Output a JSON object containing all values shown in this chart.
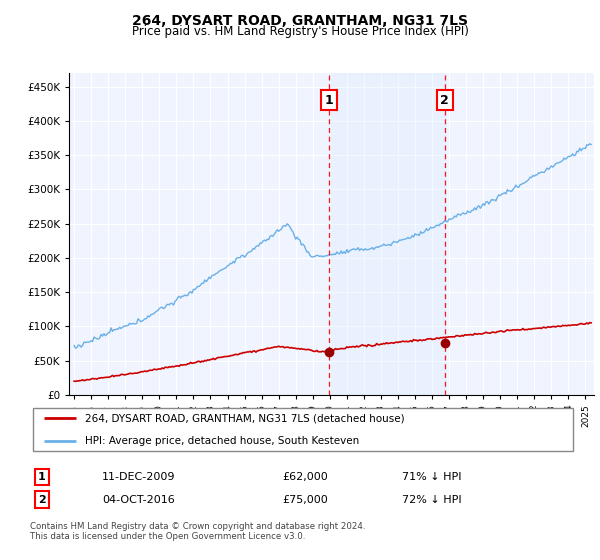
{
  "title": "264, DYSART ROAD, GRANTHAM, NG31 7LS",
  "subtitle": "Price paid vs. HM Land Registry's House Price Index (HPI)",
  "hpi_color": "#6ab0e8",
  "price_color": "#cc0000",
  "shade_color": "#ddeeff",
  "background_color": "#f0f4ff",
  "ylim": [
    0,
    470000
  ],
  "yticks": [
    0,
    50000,
    100000,
    150000,
    200000,
    250000,
    300000,
    350000,
    400000,
    450000
  ],
  "xlim_start": 1994.7,
  "xlim_end": 2025.5,
  "sale1_date": 2009.95,
  "sale1_price": 62000,
  "sale1_label": "1",
  "sale2_date": 2016.75,
  "sale2_price": 75000,
  "sale2_label": "2",
  "legend_line1": "264, DYSART ROAD, GRANTHAM, NG31 7LS (detached house)",
  "legend_line2": "HPI: Average price, detached house, South Kesteven",
  "table_row1": [
    "1",
    "11-DEC-2009",
    "£62,000",
    "71% ↓ HPI"
  ],
  "table_row2": [
    "2",
    "04-OCT-2016",
    "£75,000",
    "72% ↓ HPI"
  ],
  "footer": "Contains HM Land Registry data © Crown copyright and database right 2024.\nThis data is licensed under the Open Government Licence v3.0."
}
